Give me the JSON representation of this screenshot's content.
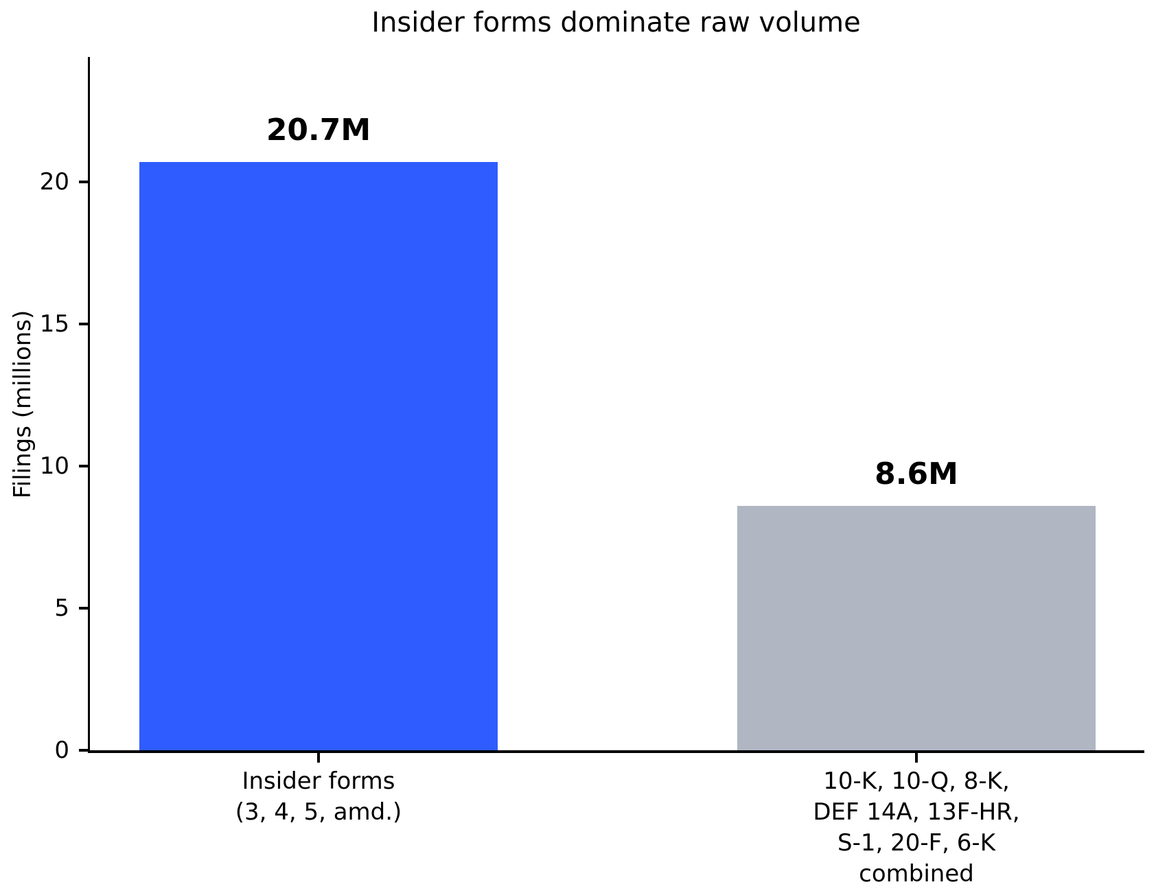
{
  "title": "Insider forms dominate raw volume",
  "chart_data": {
    "type": "bar",
    "title": "Insider forms dominate raw volume",
    "xlabel": "",
    "ylabel": "Filings (millions)",
    "ylim": [
      0,
      24.4
    ],
    "yticks": [
      0,
      5,
      10,
      15,
      20
    ],
    "grid": false,
    "legend": "none",
    "categories": [
      "Insider forms\n(3, 4, 5, amd.)",
      "10-K, 10-Q, 8-K,\nDEF 14A, 13F-HR,\nS-1, 20-F, 6-K\ncombined"
    ],
    "values": [
      20.7,
      8.6
    ],
    "value_labels": [
      "20.7M",
      "8.6M"
    ],
    "bar_colors": [
      "#2F5CFE",
      "#B0B6C2"
    ],
    "axis_color": "#000000",
    "text_color": "#000000"
  }
}
